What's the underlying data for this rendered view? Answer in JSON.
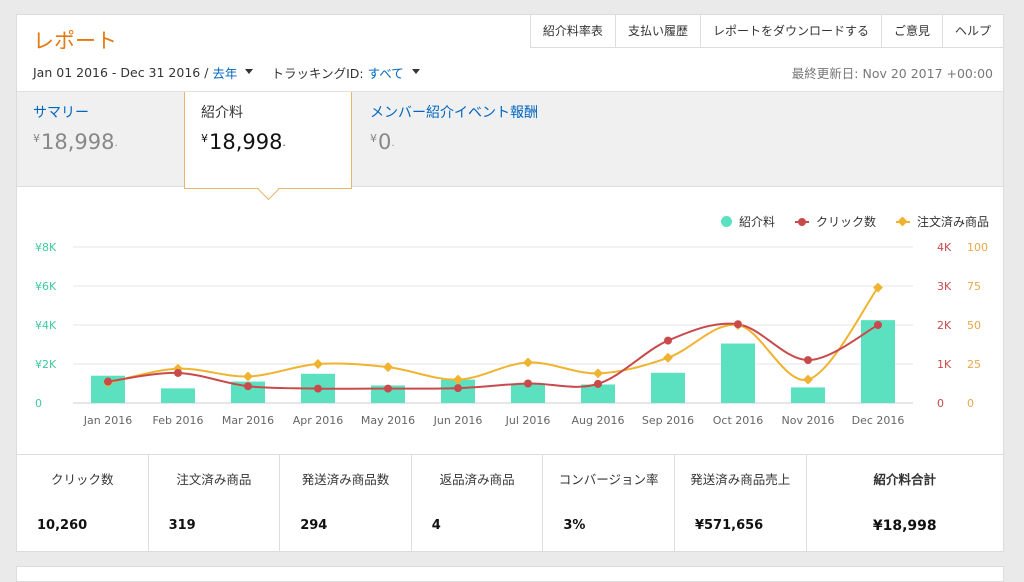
{
  "header": {
    "title": "レポート",
    "nav": [
      "紹介料率表",
      "支払い履歴",
      "レポートをダウンロードする",
      "ご意見",
      "ヘルプ"
    ]
  },
  "filters": {
    "date_range": "Jan 01 2016 - Dec 31 2016 /",
    "period": "去年",
    "tracking_label": "トラッキングID:",
    "tracking_value": "すべて"
  },
  "last_updated": "最終更新日: Nov 20 2017 +00:00",
  "summary": {
    "tabs": [
      {
        "label": "サマリー",
        "value": "18,998"
      },
      {
        "label": "紹介料",
        "value": "18,998"
      },
      {
        "label": "メンバー紹介イベント報酬",
        "value": "0"
      }
    ],
    "currency": "¥"
  },
  "chart_data": {
    "type": "bar",
    "categories": [
      "Jan 2016",
      "Feb 2016",
      "Mar 2016",
      "Apr 2016",
      "May 2016",
      "Jun 2016",
      "Jul 2016",
      "Aug 2016",
      "Sep 2016",
      "Oct 2016",
      "Nov 2016",
      "Dec 2016"
    ],
    "series": [
      {
        "name": "紹介料",
        "type": "bar",
        "axis": "left",
        "color": "#5ce1c0",
        "values": [
          1400,
          750,
          1100,
          1500,
          900,
          1200,
          950,
          950,
          1550,
          3050,
          800,
          4250
        ]
      },
      {
        "name": "クリック数",
        "type": "line",
        "axis": "right1",
        "color": "#c94a4a",
        "values": [
          550,
          770,
          430,
          370,
          370,
          380,
          500,
          490,
          1600,
          2020,
          1100,
          2000
        ]
      },
      {
        "name": "注文済み商品",
        "type": "line",
        "axis": "right2",
        "color": "#f0b32f",
        "values": [
          13,
          22,
          17,
          25,
          23,
          15,
          26,
          19,
          29,
          50,
          15,
          74
        ]
      }
    ],
    "y_left": {
      "ticks": [
        "0",
        "¥2K",
        "¥4K",
        "¥6K",
        "¥8K"
      ],
      "range": [
        0,
        8000
      ],
      "color": "#3fc99f"
    },
    "y_right1": {
      "ticks": [
        "0",
        "1K",
        "2K",
        "3K",
        "4K"
      ],
      "range": [
        0,
        4000
      ],
      "color": "#c94a4a"
    },
    "y_right2": {
      "ticks": [
        "0",
        "25",
        "50",
        "75",
        "100"
      ],
      "range": [
        0,
        100
      ],
      "color": "#e7a84a"
    },
    "legend_position": "top-right",
    "grid": true
  },
  "metrics": [
    {
      "label": "クリック数",
      "value": "10,260"
    },
    {
      "label": "注文済み商品",
      "value": "319"
    },
    {
      "label": "発送済み商品数",
      "value": "294"
    },
    {
      "label": "返品済み商品",
      "value": "4"
    },
    {
      "label": "コンバージョン率",
      "value": "3%"
    },
    {
      "label": "発送済み商品売上",
      "value": "¥571,656"
    },
    {
      "label": "紹介料合計",
      "value": "¥18,998"
    }
  ]
}
